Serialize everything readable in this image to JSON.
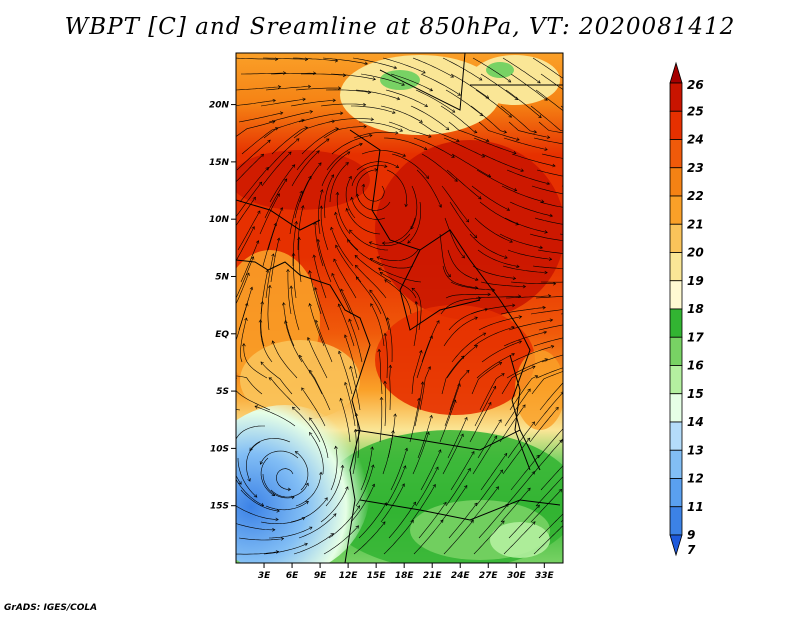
{
  "title": "WBPT [C] and Sreamline at 850hPa, VT: 2020081412",
  "footer": "GrADS: IGES/COLA",
  "map": {
    "lon_range": [
      0,
      35
    ],
    "lat_range": [
      -20,
      24.5
    ],
    "lat_ticks": [
      {
        "value": 20,
        "label": "20N"
      },
      {
        "value": 15,
        "label": "15N"
      },
      {
        "value": 10,
        "label": "10N"
      },
      {
        "value": 5,
        "label": "5N"
      },
      {
        "value": 0,
        "label": "EQ"
      },
      {
        "value": -5,
        "label": "5S"
      },
      {
        "value": -10,
        "label": "10S"
      },
      {
        "value": -15,
        "label": "15S"
      }
    ],
    "lon_ticks": [
      {
        "value": 3,
        "label": "3E"
      },
      {
        "value": 6,
        "label": "6E"
      },
      {
        "value": 9,
        "label": "9E"
      },
      {
        "value": 12,
        "label": "12E"
      },
      {
        "value": 15,
        "label": "15E"
      },
      {
        "value": 18,
        "label": "18E"
      },
      {
        "value": 21,
        "label": "21E"
      },
      {
        "value": 24,
        "label": "24E"
      },
      {
        "value": 27,
        "label": "27E"
      },
      {
        "value": 30,
        "label": "30E"
      },
      {
        "value": 33,
        "label": "33E"
      }
    ]
  },
  "colorbar": {
    "levels": [
      {
        "label": "26",
        "color": "#a50000"
      },
      {
        "label": "25",
        "color": "#c81400"
      },
      {
        "label": "24",
        "color": "#e63000"
      },
      {
        "label": "23",
        "color": "#f05a0a"
      },
      {
        "label": "22",
        "color": "#f58214"
      },
      {
        "label": "21",
        "color": "#faa028"
      },
      {
        "label": "20",
        "color": "#fac35a"
      },
      {
        "label": "19",
        "color": "#fae696"
      },
      {
        "label": "18",
        "color": "#fffad2"
      },
      {
        "label": "17",
        "color": "#32b432"
      },
      {
        "label": "16",
        "color": "#78d264"
      },
      {
        "label": "15",
        "color": "#b4f0a0"
      },
      {
        "label": "14",
        "color": "#e6ffe6"
      },
      {
        "label": "13",
        "color": "#b4dcfa"
      },
      {
        "label": "12",
        "color": "#82bef5"
      },
      {
        "label": "11",
        "color": "#5aa0f0"
      },
      {
        "label": "9",
        "color": "#3c82e6"
      },
      {
        "label": "7",
        "color": "#1e5adc"
      }
    ]
  }
}
